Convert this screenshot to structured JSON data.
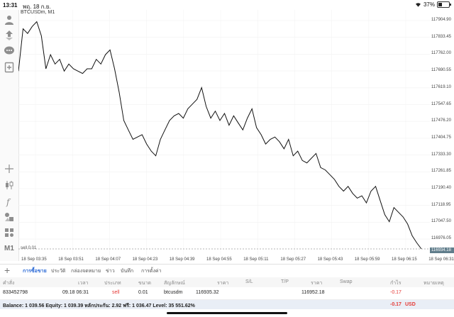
{
  "status": {
    "time": "13:31",
    "date": "พฤ. 18 ก.ย.",
    "battery": "37%",
    "battery_level": 0.37
  },
  "chart": {
    "symbol": "BTCUSDm, M1",
    "sell_label": "sell 0.01",
    "current_price": "116934.18",
    "price_ticks": [
      "117904.90",
      "117833.45",
      "117762.00",
      "117690.55",
      "117619.10",
      "117547.65",
      "117476.20",
      "117404.75",
      "117333.30",
      "117261.85",
      "117190.40",
      "117118.95",
      "117047.50",
      "116976.05"
    ],
    "time_ticks": [
      "18 Sep 03:35",
      "18 Sep 03:51",
      "18 Sep 04:07",
      "18 Sep 04:23",
      "18 Sep 04:39",
      "18 Sep 04:55",
      "18 Sep 05:11",
      "18 Sep 05:27",
      "18 Sep 05:43",
      "18 Sep 05:59",
      "18 Sep 06:15",
      "18 Sep 06:31"
    ],
    "line_color": "#111111",
    "sell_line_color": "#9e9e9e"
  },
  "chart_data": {
    "type": "line",
    "title": "BTCUSDm, M1",
    "ylim": [
      116934.18,
      117920
    ],
    "x": [
      "03:35",
      "03:37",
      "03:39",
      "03:41",
      "03:43",
      "03:45",
      "03:47",
      "03:49",
      "03:51",
      "03:53",
      "03:55",
      "03:57",
      "03:59",
      "04:01",
      "04:03",
      "04:05",
      "04:07",
      "04:09",
      "04:11",
      "04:13",
      "04:15",
      "04:17",
      "04:19",
      "04:21",
      "04:23",
      "04:25",
      "04:27",
      "04:29",
      "04:31",
      "04:33",
      "04:35",
      "04:37",
      "04:39",
      "04:41",
      "04:43",
      "04:45",
      "04:47",
      "04:49",
      "04:51",
      "04:53",
      "04:55",
      "04:57",
      "04:59",
      "05:01",
      "05:03",
      "05:05",
      "05:07",
      "05:09",
      "05:11",
      "05:13",
      "05:15",
      "05:17",
      "05:19",
      "05:21",
      "05:23",
      "05:25",
      "05:27",
      "05:29",
      "05:31",
      "05:33",
      "05:35",
      "05:37",
      "05:39",
      "05:41",
      "05:43",
      "05:45",
      "05:47",
      "05:49",
      "05:51",
      "05:53",
      "05:55",
      "05:57",
      "05:59",
      "06:01",
      "06:03",
      "06:05",
      "06:07",
      "06:09",
      "06:11",
      "06:13",
      "06:15",
      "06:17",
      "06:19",
      "06:21",
      "06:23",
      "06:25",
      "06:27",
      "06:29",
      "06:31"
    ],
    "values": [
      117690,
      117870,
      117850,
      117880,
      117900,
      117840,
      117700,
      117760,
      117720,
      117740,
      117690,
      117720,
      117700,
      117690,
      117680,
      117700,
      117700,
      117740,
      117720,
      117760,
      117780,
      117700,
      117600,
      117480,
      117440,
      117400,
      117410,
      117420,
      117380,
      117350,
      117330,
      117400,
      117440,
      117480,
      117500,
      117510,
      117490,
      117530,
      117550,
      117570,
      117620,
      117540,
      117490,
      117520,
      117480,
      117510,
      117460,
      117500,
      117470,
      117440,
      117490,
      117530,
      117450,
      117420,
      117380,
      117400,
      117410,
      117390,
      117360,
      117400,
      117330,
      117350,
      117310,
      117300,
      117320,
      117340,
      117280,
      117270,
      117250,
      117230,
      117200,
      117180,
      117200,
      117170,
      117150,
      117160,
      117130,
      117180,
      117200,
      117140,
      117080,
      117050,
      117110,
      117090,
      117070,
      117040,
      116990,
      116960,
      116934.18
    ],
    "xlabel": "",
    "ylabel": ""
  },
  "tabs": {
    "add_icon": "plus-icon",
    "items": [
      {
        "label": "การซื้อขาย",
        "active": true
      },
      {
        "label": "ประวัติ",
        "active": false
      },
      {
        "label": "กล่องจดหมาย",
        "active": false
      },
      {
        "label": "ข่าว",
        "active": false
      },
      {
        "label": "บันทึก",
        "active": false
      },
      {
        "label": "การตั้งค่า",
        "active": false
      }
    ]
  },
  "table": {
    "headers": {
      "order": "คำสั่ง",
      "time": "เวลา",
      "type": "ประเภท",
      "volume": "ขนาด",
      "symbol": "สัญลักษณ์",
      "price": "ราคา",
      "sl": "S/L",
      "tp": "T/P",
      "price2": "ราคา",
      "swap": "Swap",
      "profit": "กำไร",
      "comment": "หมายเหตุ"
    },
    "rows": [
      {
        "order": "833452798",
        "time": "09.18 06:31",
        "type": "sell",
        "volume": "0.01",
        "symbol": "btcusdm",
        "price": "116935.32",
        "price2": "116952.18",
        "profit": "-0.17"
      }
    ]
  },
  "balance": {
    "text": "Balance: 1 039.56 Equity: 1 039.39 หลักประกัน: 2.92 ฟรี: 1 036.47 Level: 35 551.62%",
    "profit": "-0.17",
    "currency": "USD"
  }
}
